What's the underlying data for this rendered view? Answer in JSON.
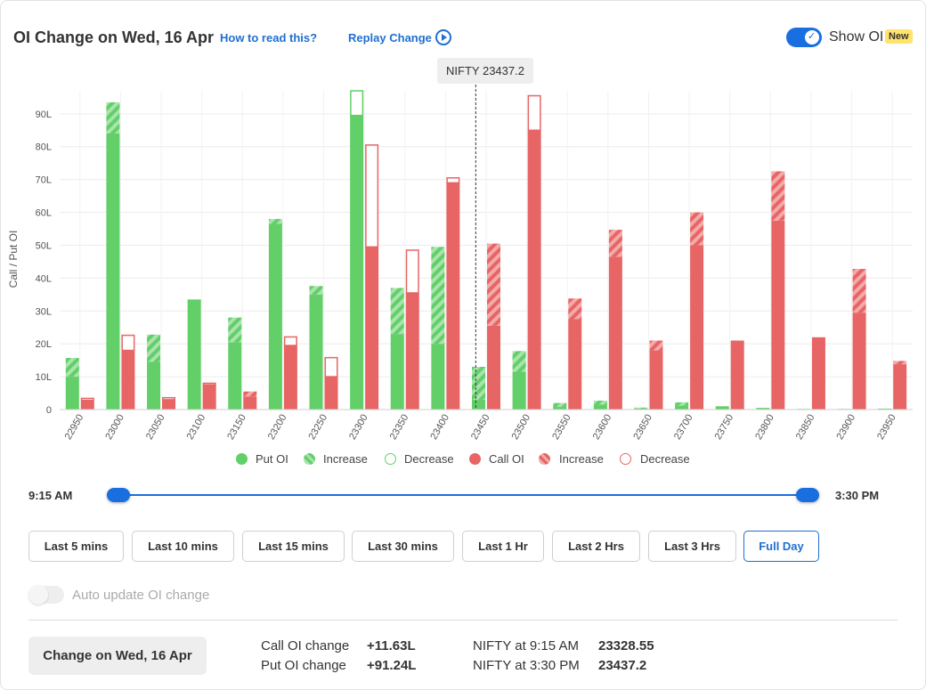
{
  "header": {
    "title": "OI Change on Wed, 16 Apr",
    "how_to_read": "How to read this?",
    "replay_change": "Replay Change",
    "show_oi_label": "Show OI",
    "new_badge": "New",
    "show_oi_on": true
  },
  "spot_label": "NIFTY 23437.2",
  "colors": {
    "put": "#62cf69",
    "call": "#e86565",
    "link": "#1f6fd1",
    "accent": "#1a6fe0"
  },
  "chart_data": {
    "type": "bar",
    "ylabel": "Call / Put OI",
    "ylim": [
      0,
      97
    ],
    "y_ticks": [
      "0",
      "10L",
      "20L",
      "30L",
      "40L",
      "50L",
      "60L",
      "70L",
      "80L",
      "90L"
    ],
    "y_tick_values": [
      0,
      10,
      20,
      30,
      40,
      50,
      60,
      70,
      80,
      90
    ],
    "categories": [
      "22950",
      "23000",
      "23050",
      "23100",
      "23150",
      "23200",
      "23250",
      "23300",
      "23350",
      "23400",
      "23450",
      "23500",
      "23550",
      "23600",
      "23650",
      "23700",
      "23750",
      "23800",
      "23850",
      "23900",
      "23950"
    ],
    "spot_value": 23437.2,
    "put_oi": {
      "base": [
        10,
        84,
        14.5,
        33.5,
        20.5,
        56.5,
        35,
        89.5,
        23,
        20,
        3,
        11.5,
        0.8,
        1.5,
        0.3,
        1.2,
        1,
        0.5,
        0.2,
        0.2,
        0.3
      ],
      "increase": [
        5.7,
        9.5,
        8.3,
        0,
        7.5,
        1.5,
        2.6,
        0,
        14,
        29.5,
        10,
        6.3,
        1.2,
        1.2,
        0.3,
        1,
        0,
        0,
        0,
        0,
        0
      ],
      "decrease": [
        0,
        0,
        0,
        0,
        0,
        0,
        0,
        7.5,
        0,
        0,
        0,
        0,
        0,
        0,
        0,
        0,
        0,
        0,
        0,
        0,
        0
      ]
    },
    "call_oi": {
      "base": [
        2.8,
        18,
        3,
        7.5,
        4,
        19.5,
        10,
        49.5,
        35.5,
        69,
        25.5,
        85,
        27.5,
        46.5,
        18,
        50,
        21,
        57.5,
        22,
        29.5,
        13.8
      ],
      "increase": [
        0,
        0,
        0,
        0,
        1.5,
        0,
        0,
        0,
        0,
        0,
        25,
        0,
        6.3,
        8.2,
        3,
        10,
        0,
        15,
        0,
        13.3,
        1
      ],
      "decrease": [
        0.6,
        4.6,
        0.6,
        0.5,
        0,
        2.6,
        5.8,
        31,
        13,
        1.5,
        0,
        10.5,
        0,
        0,
        0,
        0,
        0,
        0,
        0,
        0,
        0
      ]
    },
    "legend": [
      "Put OI",
      "Increase",
      "Decrease",
      "Call OI",
      "Increase",
      "Decrease"
    ],
    "grid": true,
    "legend_position": "bottom"
  },
  "slider": {
    "start_label": "9:15 AM",
    "end_label": "3:30 PM"
  },
  "time_buttons": [
    {
      "label": "Last 5 mins",
      "active": false
    },
    {
      "label": "Last 10 mins",
      "active": false
    },
    {
      "label": "Last 15 mins",
      "active": false
    },
    {
      "label": "Last 30 mins",
      "active": false
    },
    {
      "label": "Last 1 Hr",
      "active": false
    },
    {
      "label": "Last 2 Hrs",
      "active": false
    },
    {
      "label": "Last 3 Hrs",
      "active": false
    },
    {
      "label": "Full Day",
      "active": true
    }
  ],
  "auto_update": {
    "label": "Auto update OI change",
    "enabled": false
  },
  "summary": {
    "change_button": "Change on Wed, 16 Apr",
    "call_label": "Call OI change",
    "call_value": "+11.63L",
    "put_label": "Put OI change",
    "put_value": "+91.24L",
    "nifty_open_label": "NIFTY at 9:15 AM",
    "nifty_open_value": "23328.55",
    "nifty_close_label": "NIFTY at 3:30 PM",
    "nifty_close_value": "23437.2"
  }
}
